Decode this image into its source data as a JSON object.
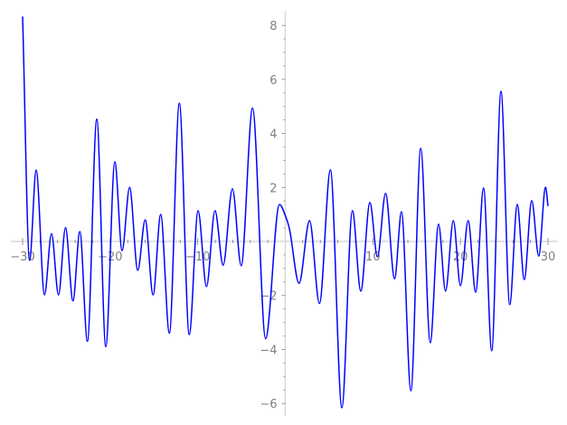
{
  "chart_data": {
    "type": "line",
    "title": "",
    "xlabel": "",
    "ylabel": "",
    "xlim": [
      -30,
      30
    ],
    "ylim": [
      -6.4,
      8.5
    ],
    "grid": false,
    "line_color": "#0000ff",
    "axis_color": "#d9d9d9",
    "tick_label_color": "#808080",
    "x_ticks": [
      -30,
      -20,
      -10,
      10,
      20,
      30
    ],
    "x_tick_labels": [
      "−30",
      "−20",
      "−10",
      "10",
      "20",
      "30"
    ],
    "y_ticks": [
      -6,
      -4,
      -2,
      2,
      4,
      6,
      8
    ],
    "y_tick_labels": [
      "−6",
      "−4",
      "−2",
      "2",
      "4",
      "6",
      "8"
    ],
    "series": [
      {
        "x": [
          -30,
          -29.2,
          -28.45,
          -27.5,
          -26.7,
          -25.9,
          -25.1,
          -24.25,
          -23.46,
          -22.6,
          -21.53,
          -20.5,
          -19.47,
          -18.64,
          -17.78,
          -16.85,
          -16.0,
          -15.1,
          -14.23,
          -13.24,
          -12.1,
          -10.97,
          -9.96,
          -9.0,
          -8.03,
          -7.1,
          -6.04,
          -5.04,
          -3.74,
          -2.25,
          -0.67,
          0.0,
          0.47,
          1.57,
          2.77,
          3.9,
          5.15,
          6.46,
          7.66,
          8.62,
          9.66,
          10.52,
          11.45,
          12.48,
          13.27,
          14.34,
          15.47,
          16.55,
          17.5,
          18.3,
          19.19,
          20.0,
          20.88,
          21.74,
          22.64,
          23.57,
          24.63,
          25.63,
          26.49,
          27.29,
          28.14,
          28.94,
          29.72,
          30
        ],
        "y": [
          8.33,
          -0.7,
          2.64,
          -1.98,
          0.29,
          -1.98,
          0.51,
          -2.2,
          0.37,
          -3.7,
          4.53,
          -3.9,
          2.95,
          -0.34,
          2.0,
          -1.07,
          0.8,
          -1.98,
          1.0,
          -3.4,
          5.12,
          -3.45,
          1.14,
          -1.67,
          1.14,
          -0.88,
          1.95,
          -0.9,
          4.94,
          -3.6,
          1.37,
          0.96,
          0.47,
          -1.55,
          0.77,
          -2.3,
          2.65,
          -6.16,
          1.14,
          -1.84,
          1.44,
          -0.57,
          1.78,
          -1.38,
          1.1,
          -5.53,
          3.45,
          -3.75,
          0.64,
          -1.84,
          0.77,
          -1.64,
          0.77,
          -1.88,
          1.98,
          -4.05,
          5.56,
          -2.34,
          1.37,
          -1.41,
          1.51,
          -0.54,
          2.01,
          1.31
        ]
      }
    ]
  }
}
